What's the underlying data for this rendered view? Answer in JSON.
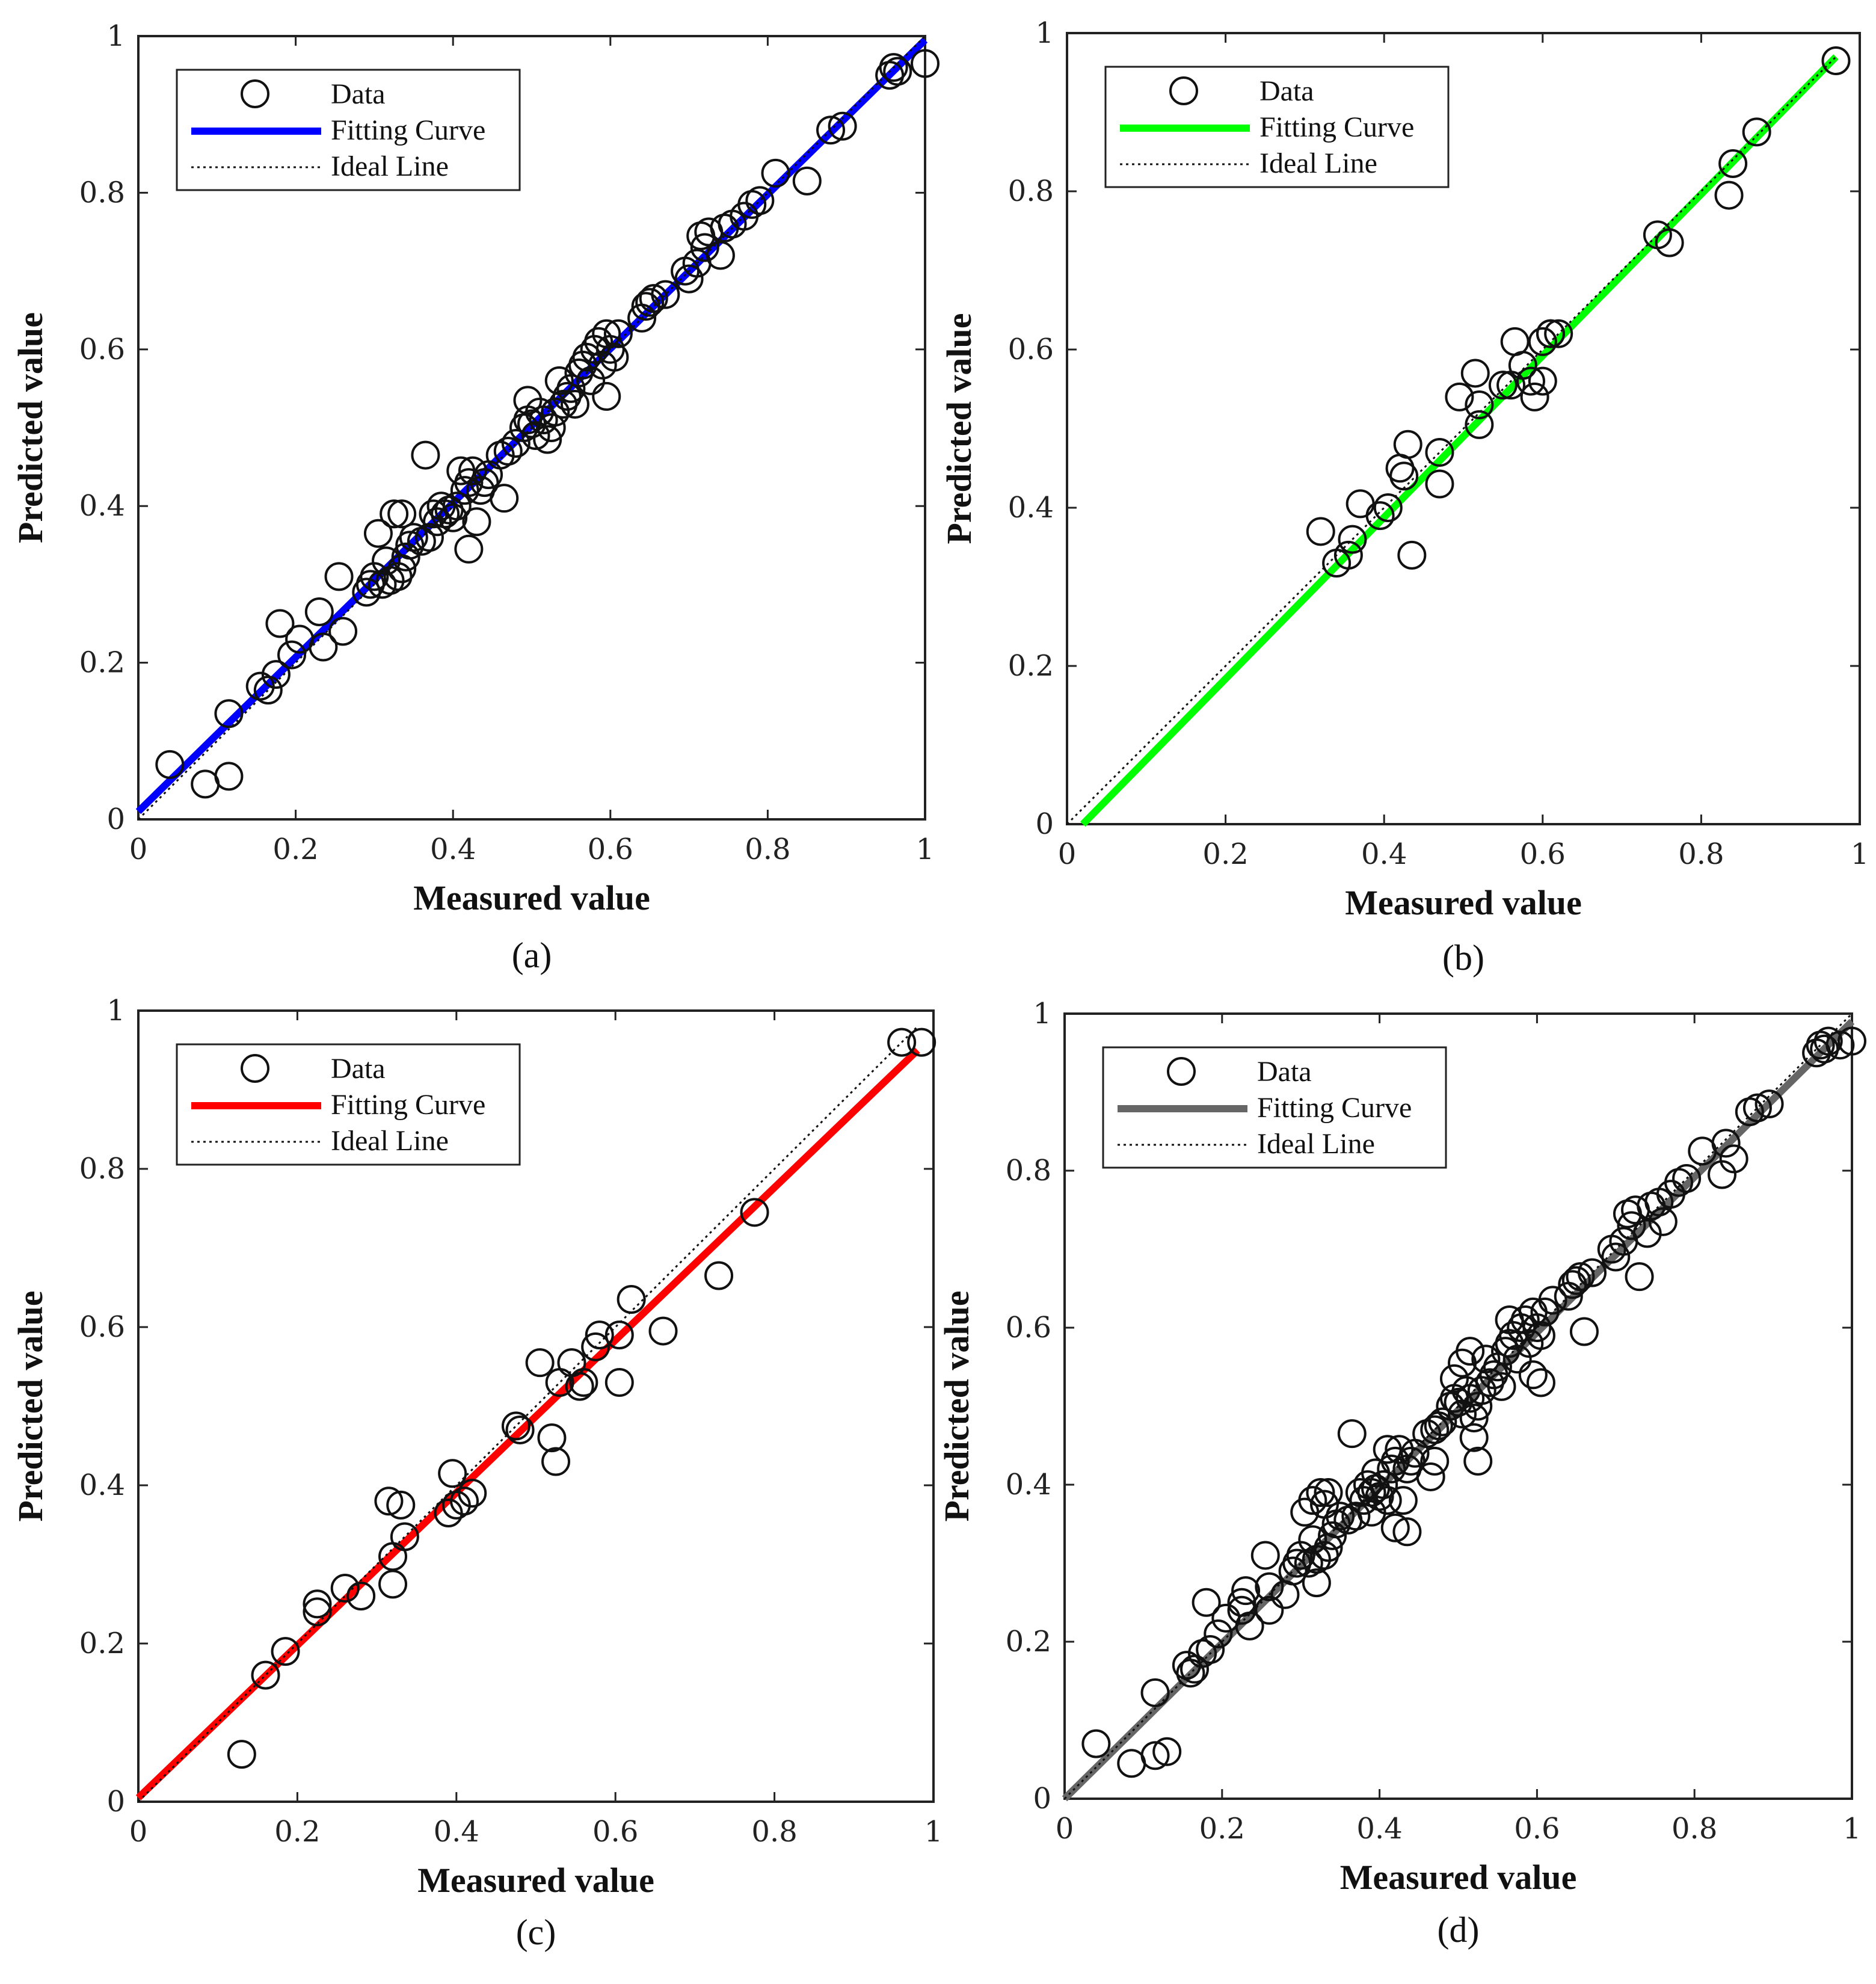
{
  "chart_data": [
    {
      "type": "scatter",
      "panel_label": "(a)",
      "xlabel": "Measured value",
      "ylabel": "Predicted value",
      "xlim": [
        0,
        1
      ],
      "ylim": [
        0,
        1
      ],
      "x_ticks": [
        "0",
        "0.2",
        "0.4",
        "0.6",
        "0.8",
        "1"
      ],
      "y_ticks": [
        "0",
        "0.2",
        "0.4",
        "0.6",
        "0.8",
        "1"
      ],
      "legend": {
        "position": "top-left",
        "entries": [
          "Data",
          "Fitting Curve",
          "Ideal Line"
        ]
      },
      "fit_color": "#0000ff",
      "fit_line": [
        [
          0,
          0.01
        ],
        [
          1,
          0.995
        ]
      ],
      "ideal_line": [
        [
          0,
          0
        ],
        [
          1,
          1
        ]
      ],
      "points": [
        [
          0.04,
          0.07
        ],
        [
          0.085,
          0.045
        ],
        [
          0.115,
          0.055
        ],
        [
          0.115,
          0.135
        ],
        [
          0.155,
          0.17
        ],
        [
          0.165,
          0.165
        ],
        [
          0.175,
          0.185
        ],
        [
          0.18,
          0.25
        ],
        [
          0.195,
          0.21
        ],
        [
          0.205,
          0.23
        ],
        [
          0.23,
          0.265
        ],
        [
          0.235,
          0.22
        ],
        [
          0.255,
          0.31
        ],
        [
          0.26,
          0.24
        ],
        [
          0.29,
          0.29
        ],
        [
          0.295,
          0.3
        ],
        [
          0.3,
          0.31
        ],
        [
          0.305,
          0.365
        ],
        [
          0.31,
          0.3
        ],
        [
          0.315,
          0.33
        ],
        [
          0.32,
          0.305
        ],
        [
          0.325,
          0.39
        ],
        [
          0.33,
          0.31
        ],
        [
          0.335,
          0.32
        ],
        [
          0.335,
          0.39
        ],
        [
          0.34,
          0.335
        ],
        [
          0.345,
          0.35
        ],
        [
          0.35,
          0.36
        ],
        [
          0.36,
          0.355
        ],
        [
          0.365,
          0.465
        ],
        [
          0.37,
          0.36
        ],
        [
          0.375,
          0.39
        ],
        [
          0.38,
          0.38
        ],
        [
          0.385,
          0.4
        ],
        [
          0.39,
          0.39
        ],
        [
          0.395,
          0.395
        ],
        [
          0.4,
          0.385
        ],
        [
          0.405,
          0.4
        ],
        [
          0.41,
          0.445
        ],
        [
          0.415,
          0.42
        ],
        [
          0.42,
          0.345
        ],
        [
          0.42,
          0.43
        ],
        [
          0.425,
          0.445
        ],
        [
          0.43,
          0.38
        ],
        [
          0.435,
          0.42
        ],
        [
          0.44,
          0.43
        ],
        [
          0.445,
          0.44
        ],
        [
          0.46,
          0.465
        ],
        [
          0.465,
          0.41
        ],
        [
          0.47,
          0.47
        ],
        [
          0.48,
          0.48
        ],
        [
          0.49,
          0.5
        ],
        [
          0.495,
          0.51
        ],
        [
          0.495,
          0.535
        ],
        [
          0.5,
          0.505
        ],
        [
          0.505,
          0.49
        ],
        [
          0.51,
          0.52
        ],
        [
          0.515,
          0.51
        ],
        [
          0.52,
          0.485
        ],
        [
          0.525,
          0.5
        ],
        [
          0.53,
          0.52
        ],
        [
          0.535,
          0.56
        ],
        [
          0.54,
          0.53
        ],
        [
          0.545,
          0.54
        ],
        [
          0.55,
          0.55
        ],
        [
          0.555,
          0.53
        ],
        [
          0.56,
          0.57
        ],
        [
          0.565,
          0.58
        ],
        [
          0.57,
          0.59
        ],
        [
          0.575,
          0.56
        ],
        [
          0.58,
          0.6
        ],
        [
          0.585,
          0.61
        ],
        [
          0.59,
          0.58
        ],
        [
          0.595,
          0.62
        ],
        [
          0.595,
          0.54
        ],
        [
          0.6,
          0.6
        ],
        [
          0.605,
          0.59
        ],
        [
          0.61,
          0.62
        ],
        [
          0.64,
          0.64
        ],
        [
          0.645,
          0.655
        ],
        [
          0.65,
          0.66
        ],
        [
          0.655,
          0.665
        ],
        [
          0.67,
          0.67
        ],
        [
          0.695,
          0.7
        ],
        [
          0.7,
          0.69
        ],
        [
          0.71,
          0.71
        ],
        [
          0.715,
          0.745
        ],
        [
          0.72,
          0.73
        ],
        [
          0.725,
          0.75
        ],
        [
          0.74,
          0.72
        ],
        [
          0.745,
          0.755
        ],
        [
          0.755,
          0.76
        ],
        [
          0.77,
          0.77
        ],
        [
          0.78,
          0.785
        ],
        [
          0.79,
          0.79
        ],
        [
          0.81,
          0.825
        ],
        [
          0.85,
          0.815
        ],
        [
          0.88,
          0.88
        ],
        [
          0.895,
          0.885
        ],
        [
          0.955,
          0.95
        ],
        [
          0.96,
          0.96
        ],
        [
          0.965,
          0.955
        ],
        [
          1.0,
          0.965
        ]
      ]
    },
    {
      "type": "scatter",
      "panel_label": "(b)",
      "xlabel": "Measured value",
      "ylabel": "Predicted value",
      "xlim": [
        0,
        1
      ],
      "ylim": [
        0,
        1
      ],
      "x_ticks": [
        "0",
        "0.2",
        "0.4",
        "0.6",
        "0.8",
        "1"
      ],
      "y_ticks": [
        "0",
        "0.2",
        "0.4",
        "0.6",
        "0.8",
        "1"
      ],
      "legend": {
        "position": "top-left",
        "entries": [
          "Data",
          "Fitting Curve",
          "Ideal Line"
        ]
      },
      "fit_color": "#00ff00",
      "fit_line": [
        [
          0.02,
          0
        ],
        [
          0.97,
          0.97
        ]
      ],
      "ideal_line": [
        [
          0,
          0
        ],
        [
          0.97,
          0.97
        ]
      ],
      "points": [
        [
          0.32,
          0.37
        ],
        [
          0.34,
          0.33
        ],
        [
          0.355,
          0.34
        ],
        [
          0.36,
          0.36
        ],
        [
          0.37,
          0.405
        ],
        [
          0.395,
          0.39
        ],
        [
          0.405,
          0.4
        ],
        [
          0.42,
          0.45
        ],
        [
          0.425,
          0.44
        ],
        [
          0.43,
          0.48
        ],
        [
          0.435,
          0.34
        ],
        [
          0.47,
          0.47
        ],
        [
          0.47,
          0.43
        ],
        [
          0.495,
          0.54
        ],
        [
          0.515,
          0.57
        ],
        [
          0.52,
          0.53
        ],
        [
          0.52,
          0.505
        ],
        [
          0.55,
          0.555
        ],
        [
          0.56,
          0.555
        ],
        [
          0.565,
          0.61
        ],
        [
          0.575,
          0.58
        ],
        [
          0.585,
          0.56
        ],
        [
          0.59,
          0.54
        ],
        [
          0.6,
          0.61
        ],
        [
          0.6,
          0.56
        ],
        [
          0.61,
          0.62
        ],
        [
          0.61,
          0.62
        ],
        [
          0.62,
          0.62
        ],
        [
          0.745,
          0.745
        ],
        [
          0.76,
          0.735
        ],
        [
          0.835,
          0.795
        ],
        [
          0.84,
          0.835
        ],
        [
          0.87,
          0.875
        ],
        [
          0.97,
          0.965
        ]
      ]
    },
    {
      "type": "scatter",
      "panel_label": "(c)",
      "xlabel": "Measured value",
      "ylabel": "Predicted value",
      "xlim": [
        0,
        1
      ],
      "ylim": [
        0,
        1
      ],
      "x_ticks": [
        "0",
        "0.2",
        "0.4",
        "0.6",
        "0.8",
        "1"
      ],
      "y_ticks": [
        "0",
        "0.2",
        "0.4",
        "0.6",
        "0.8",
        "1"
      ],
      "legend": {
        "position": "top-left",
        "entries": [
          "Data",
          "Fitting Curve",
          "Ideal Line"
        ]
      },
      "fit_color": "#ff0000",
      "fit_line": [
        [
          0,
          0.005
        ],
        [
          0.98,
          0.95
        ]
      ],
      "ideal_line": [
        [
          0,
          0
        ],
        [
          0.98,
          0.98
        ]
      ],
      "points": [
        [
          0.13,
          0.06
        ],
        [
          0.16,
          0.16
        ],
        [
          0.185,
          0.19
        ],
        [
          0.225,
          0.24
        ],
        [
          0.225,
          0.25
        ],
        [
          0.26,
          0.27
        ],
        [
          0.28,
          0.26
        ],
        [
          0.315,
          0.38
        ],
        [
          0.32,
          0.31
        ],
        [
          0.32,
          0.275
        ],
        [
          0.33,
          0.375
        ],
        [
          0.335,
          0.335
        ],
        [
          0.39,
          0.365
        ],
        [
          0.395,
          0.415
        ],
        [
          0.4,
          0.375
        ],
        [
          0.41,
          0.38
        ],
        [
          0.42,
          0.39
        ],
        [
          0.475,
          0.475
        ],
        [
          0.48,
          0.47
        ],
        [
          0.505,
          0.555
        ],
        [
          0.52,
          0.46
        ],
        [
          0.525,
          0.43
        ],
        [
          0.53,
          0.53
        ],
        [
          0.545,
          0.555
        ],
        [
          0.555,
          0.525
        ],
        [
          0.56,
          0.53
        ],
        [
          0.575,
          0.575
        ],
        [
          0.58,
          0.59
        ],
        [
          0.605,
          0.59
        ],
        [
          0.605,
          0.53
        ],
        [
          0.62,
          0.635
        ],
        [
          0.66,
          0.595
        ],
        [
          0.73,
          0.665
        ],
        [
          0.775,
          0.745
        ],
        [
          0.96,
          0.96
        ],
        [
          0.985,
          0.96
        ]
      ]
    },
    {
      "type": "scatter",
      "panel_label": "(d)",
      "xlabel": "Measured value",
      "ylabel": "Predicted value",
      "xlim": [
        0,
        1
      ],
      "ylim": [
        0,
        1
      ],
      "x_ticks": [
        "0",
        "0.2",
        "0.4",
        "0.6",
        "0.8",
        "1"
      ],
      "y_ticks": [
        "0",
        "0.2",
        "0.4",
        "0.6",
        "0.8",
        "1"
      ],
      "legend": {
        "position": "top-left",
        "entries": [
          "Data",
          "Fitting Curve",
          "Ideal Line"
        ]
      },
      "fit_color": "#666666",
      "fit_line": [
        [
          0,
          0.0
        ],
        [
          1,
          0.99
        ]
      ],
      "ideal_line": [
        [
          0,
          0
        ],
        [
          1,
          1
        ]
      ],
      "points": [
        [
          0.04,
          0.07
        ],
        [
          0.085,
          0.045
        ],
        [
          0.115,
          0.055
        ],
        [
          0.115,
          0.135
        ],
        [
          0.13,
          0.06
        ],
        [
          0.155,
          0.17
        ],
        [
          0.16,
          0.16
        ],
        [
          0.165,
          0.165
        ],
        [
          0.175,
          0.185
        ],
        [
          0.18,
          0.25
        ],
        [
          0.185,
          0.19
        ],
        [
          0.195,
          0.21
        ],
        [
          0.205,
          0.23
        ],
        [
          0.225,
          0.24
        ],
        [
          0.225,
          0.25
        ],
        [
          0.23,
          0.265
        ],
        [
          0.235,
          0.22
        ],
        [
          0.255,
          0.31
        ],
        [
          0.26,
          0.24
        ],
        [
          0.26,
          0.27
        ],
        [
          0.28,
          0.26
        ],
        [
          0.29,
          0.29
        ],
        [
          0.295,
          0.3
        ],
        [
          0.3,
          0.31
        ],
        [
          0.305,
          0.365
        ],
        [
          0.31,
          0.3
        ],
        [
          0.315,
          0.33
        ],
        [
          0.315,
          0.38
        ],
        [
          0.32,
          0.305
        ],
        [
          0.32,
          0.275
        ],
        [
          0.325,
          0.39
        ],
        [
          0.33,
          0.31
        ],
        [
          0.33,
          0.375
        ],
        [
          0.335,
          0.32
        ],
        [
          0.335,
          0.39
        ],
        [
          0.34,
          0.335
        ],
        [
          0.345,
          0.35
        ],
        [
          0.35,
          0.36
        ],
        [
          0.36,
          0.355
        ],
        [
          0.365,
          0.465
        ],
        [
          0.37,
          0.36
        ],
        [
          0.375,
          0.39
        ],
        [
          0.38,
          0.38
        ],
        [
          0.385,
          0.4
        ],
        [
          0.39,
          0.39
        ],
        [
          0.39,
          0.365
        ],
        [
          0.395,
          0.395
        ],
        [
          0.395,
          0.415
        ],
        [
          0.4,
          0.385
        ],
        [
          0.405,
          0.4
        ],
        [
          0.41,
          0.445
        ],
        [
          0.41,
          0.38
        ],
        [
          0.415,
          0.42
        ],
        [
          0.42,
          0.345
        ],
        [
          0.42,
          0.43
        ],
        [
          0.425,
          0.445
        ],
        [
          0.43,
          0.38
        ],
        [
          0.435,
          0.42
        ],
        [
          0.435,
          0.34
        ],
        [
          0.44,
          0.43
        ],
        [
          0.445,
          0.44
        ],
        [
          0.46,
          0.465
        ],
        [
          0.465,
          0.41
        ],
        [
          0.47,
          0.47
        ],
        [
          0.47,
          0.43
        ],
        [
          0.475,
          0.475
        ],
        [
          0.48,
          0.48
        ],
        [
          0.49,
          0.5
        ],
        [
          0.495,
          0.51
        ],
        [
          0.495,
          0.535
        ],
        [
          0.5,
          0.505
        ],
        [
          0.505,
          0.555
        ],
        [
          0.505,
          0.49
        ],
        [
          0.51,
          0.52
        ],
        [
          0.515,
          0.51
        ],
        [
          0.515,
          0.57
        ],
        [
          0.52,
          0.46
        ],
        [
          0.52,
          0.485
        ],
        [
          0.525,
          0.43
        ],
        [
          0.525,
          0.5
        ],
        [
          0.53,
          0.52
        ],
        [
          0.535,
          0.56
        ],
        [
          0.54,
          0.53
        ],
        [
          0.545,
          0.54
        ],
        [
          0.55,
          0.55
        ],
        [
          0.555,
          0.525
        ],
        [
          0.56,
          0.57
        ],
        [
          0.565,
          0.61
        ],
        [
          0.565,
          0.58
        ],
        [
          0.57,
          0.59
        ],
        [
          0.575,
          0.56
        ],
        [
          0.58,
          0.6
        ],
        [
          0.585,
          0.61
        ],
        [
          0.59,
          0.58
        ],
        [
          0.595,
          0.62
        ],
        [
          0.595,
          0.54
        ],
        [
          0.6,
          0.6
        ],
        [
          0.605,
          0.59
        ],
        [
          0.605,
          0.53
        ],
        [
          0.61,
          0.62
        ],
        [
          0.62,
          0.635
        ],
        [
          0.64,
          0.64
        ],
        [
          0.645,
          0.655
        ],
        [
          0.65,
          0.66
        ],
        [
          0.655,
          0.665
        ],
        [
          0.66,
          0.595
        ],
        [
          0.67,
          0.67
        ],
        [
          0.695,
          0.7
        ],
        [
          0.7,
          0.69
        ],
        [
          0.71,
          0.71
        ],
        [
          0.715,
          0.745
        ],
        [
          0.72,
          0.73
        ],
        [
          0.725,
          0.75
        ],
        [
          0.73,
          0.665
        ],
        [
          0.74,
          0.72
        ],
        [
          0.745,
          0.755
        ],
        [
          0.755,
          0.76
        ],
        [
          0.76,
          0.735
        ],
        [
          0.77,
          0.77
        ],
        [
          0.78,
          0.785
        ],
        [
          0.79,
          0.79
        ],
        [
          0.81,
          0.825
        ],
        [
          0.835,
          0.795
        ],
        [
          0.84,
          0.835
        ],
        [
          0.85,
          0.815
        ],
        [
          0.87,
          0.875
        ],
        [
          0.88,
          0.88
        ],
        [
          0.895,
          0.885
        ],
        [
          0.955,
          0.95
        ],
        [
          0.96,
          0.96
        ],
        [
          0.965,
          0.955
        ],
        [
          0.97,
          0.965
        ],
        [
          0.985,
          0.96
        ],
        [
          1.0,
          0.965
        ]
      ]
    }
  ]
}
